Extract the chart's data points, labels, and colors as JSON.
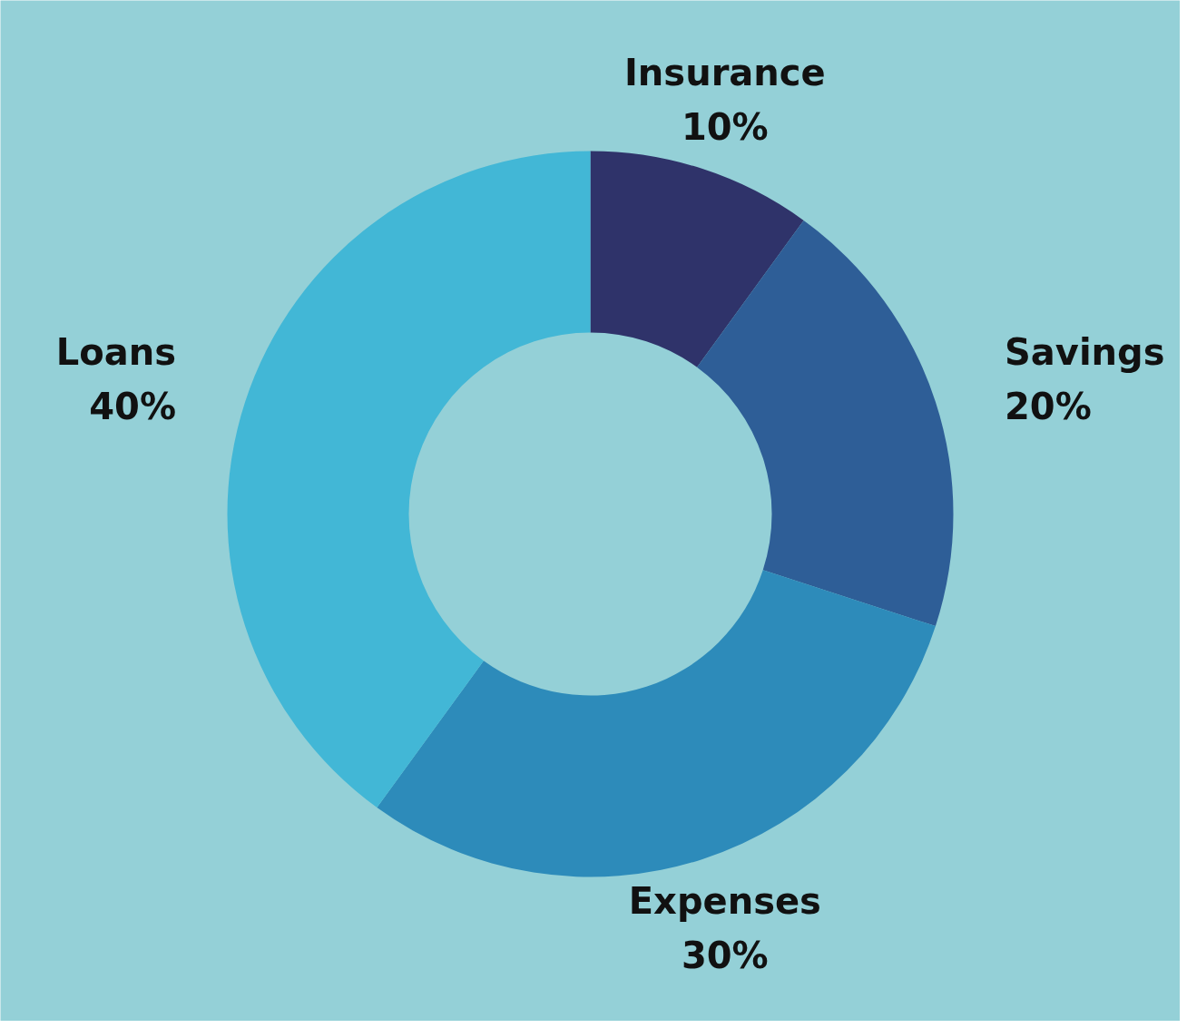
{
  "chart_data": {
    "type": "donut",
    "categories": [
      "Insurance",
      "Savings",
      "Expenses",
      "Loans"
    ],
    "values": [
      10,
      20,
      30,
      40
    ],
    "colors": [
      "#2f336a",
      "#2e5e97",
      "#2d8bba",
      "#42b7d6"
    ],
    "value_labels": [
      "10%",
      "20%",
      "30%",
      "40%"
    ]
  }
}
